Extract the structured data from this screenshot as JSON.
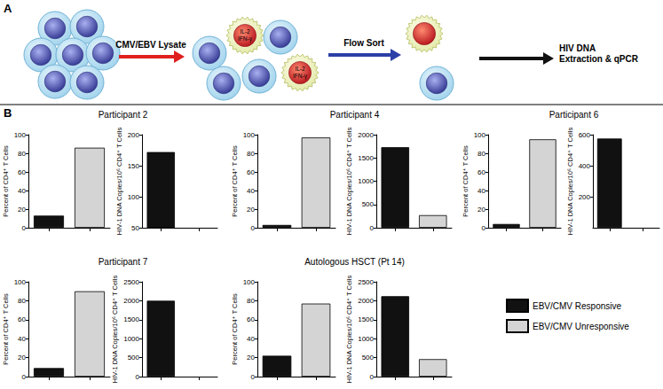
{
  "figure": {
    "panel_labels": [
      "A",
      "B"
    ],
    "workflow": {
      "steps": [
        "CMV/EBV Lysate",
        "Flow Sort"
      ],
      "final_step": [
        "HIV DNA",
        "Extraction & qPCR"
      ],
      "cell_labels": [
        "IL-2",
        "IFN-γ"
      ]
    }
  },
  "chart_data": [
    {
      "type": "bar",
      "title": "Participant 2",
      "ylabel": "Percent of CD4⁺ T Cells",
      "categories": [
        null,
        null
      ],
      "series": [
        {
          "name": "EBV/CMV Responsive",
          "color": "#111111",
          "values": [
            13,
            null
          ]
        },
        {
          "name": "EBV/CMV Unresponsive",
          "color": "#d4d4d4",
          "values": [
            null,
            86
          ]
        }
      ],
      "ylim": [
        0,
        100
      ],
      "yticks": [
        0,
        20,
        40,
        60,
        80,
        100
      ],
      "grid": false,
      "tick_labels": "y"
    },
    {
      "type": "bar",
      "ylabel": "HIV-1 DNA Copies/10⁶ CD4⁺ T Cells",
      "categories": [
        null,
        null
      ],
      "series": [
        {
          "name": "EBV/CMV Responsive",
          "color": "#111111",
          "values": [
            172,
            null
          ]
        },
        {
          "name": "EBV/CMV Unresponsive",
          "color": "#d4d4d4",
          "values": [
            null,
            null
          ]
        }
      ],
      "ylim": [
        50,
        200
      ],
      "yticks": [
        50,
        100,
        150,
        200
      ],
      "grid": false,
      "tick_labels": "y"
    },
    {
      "type": "bar",
      "title": "Participant 4",
      "ylabel": "Percent of CD4⁺ T Cells",
      "categories": [
        null,
        null
      ],
      "series": [
        {
          "name": "EBV/CMV Responsive",
          "color": "#111111",
          "values": [
            3,
            null
          ]
        },
        {
          "name": "EBV/CMV Unresponsive",
          "color": "#d4d4d4",
          "values": [
            null,
            97
          ]
        }
      ],
      "ylim": [
        0,
        100
      ],
      "yticks": [
        0,
        20,
        40,
        60,
        80,
        100
      ],
      "grid": false,
      "tick_labels": "y"
    },
    {
      "type": "bar",
      "ylabel": "HIV-1 DNA Copies/10⁶ CD4⁺ T Cells",
      "categories": [
        null,
        null
      ],
      "series": [
        {
          "name": "EBV/CMV Responsive",
          "color": "#111111",
          "values": [
            1730,
            null
          ]
        },
        {
          "name": "EBV/CMV Unresponsive",
          "color": "#d4d4d4",
          "values": [
            null,
            270
          ]
        }
      ],
      "ylim": [
        0,
        2000
      ],
      "yticks": [
        0,
        500,
        1000,
        1500,
        2000
      ],
      "grid": false,
      "tick_labels": "y"
    },
    {
      "type": "bar",
      "title": "Participant 6",
      "ylabel": "Percent of CD4⁺ T Cells",
      "categories": [
        null,
        null
      ],
      "series": [
        {
          "name": "EBV/CMV Responsive",
          "color": "#111111",
          "values": [
            4,
            null
          ]
        },
        {
          "name": "EBV/CMV Unresponsive",
          "color": "#d4d4d4",
          "values": [
            null,
            95
          ]
        }
      ],
      "ylim": [
        0,
        100
      ],
      "yticks": [
        0,
        20,
        40,
        60,
        80,
        100
      ],
      "grid": false,
      "tick_labels": "y"
    },
    {
      "type": "bar",
      "ylabel": "HIV-1 DNA Copies/10⁶ CD4⁺ T Cells",
      "categories": [
        null,
        null
      ],
      "series": [
        {
          "name": "EBV/CMV Responsive",
          "color": "#111111",
          "values": [
            575,
            null
          ]
        },
        {
          "name": "EBV/CMV Unresponsive",
          "color": "#d4d4d4",
          "values": [
            null,
            null
          ]
        }
      ],
      "ylim": [
        0,
        600
      ],
      "yticks": [
        200,
        400,
        600
      ],
      "grid": false,
      "tick_labels": "y"
    },
    {
      "type": "bar",
      "title": "Participant 7",
      "ylabel": "Percent of CD4⁺ T Cells",
      "categories": [
        null,
        null
      ],
      "series": [
        {
          "name": "EBV/CMV Responsive",
          "color": "#111111",
          "values": [
            9,
            null
          ]
        },
        {
          "name": "EBV/CMV Unresponsive",
          "color": "#d4d4d4",
          "values": [
            null,
            90
          ]
        }
      ],
      "ylim": [
        0,
        100
      ],
      "yticks": [
        0,
        20,
        40,
        60,
        80,
        100
      ],
      "grid": false,
      "tick_labels": "y"
    },
    {
      "type": "bar",
      "ylabel": "HIV-1 DNA Copies/10⁶ CD4⁺ T Cells",
      "categories": [
        null,
        null
      ],
      "series": [
        {
          "name": "EBV/CMV Responsive",
          "color": "#111111",
          "values": [
            2000,
            null
          ]
        },
        {
          "name": "EBV/CMV Unresponsive",
          "color": "#d4d4d4",
          "values": [
            null,
            null
          ]
        }
      ],
      "ylim": [
        0,
        2500
      ],
      "yticks": [
        0,
        500,
        1000,
        1500,
        2000,
        2500
      ],
      "grid": false,
      "tick_labels": "y"
    },
    {
      "type": "bar",
      "title": "Autologous HSCT (Pt 14)",
      "ylabel": "Percent of CD4⁺ T Cells",
      "categories": [
        null,
        null
      ],
      "series": [
        {
          "name": "EBV/CMV Responsive",
          "color": "#111111",
          "values": [
            22,
            null
          ]
        },
        {
          "name": "EBV/CMV Unresponsive",
          "color": "#d4d4d4",
          "values": [
            null,
            77
          ]
        }
      ],
      "ylim": [
        0,
        100
      ],
      "yticks": [
        0,
        20,
        40,
        60,
        80,
        100
      ],
      "grid": false,
      "tick_labels": "y"
    },
    {
      "type": "bar",
      "ylabel": "HIV-1 DNA Copies/10⁶ CD4⁺ T Cells",
      "categories": [
        null,
        null
      ],
      "series": [
        {
          "name": "EBV/CMV Responsive",
          "color": "#111111",
          "values": [
            2120,
            null
          ]
        },
        {
          "name": "EBV/CMV Unresponsive",
          "color": "#d4d4d4",
          "values": [
            null,
            460
          ]
        }
      ],
      "ylim": [
        0,
        2500
      ],
      "yticks": [
        0,
        500,
        1000,
        1500,
        2000,
        2500
      ],
      "grid": false,
      "tick_labels": "y",
      "legend": "lower right"
    }
  ]
}
